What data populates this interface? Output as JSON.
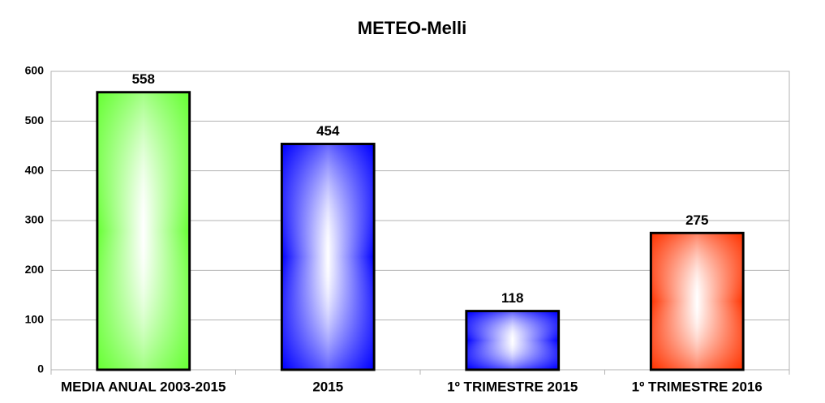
{
  "chart_data": {
    "type": "bar",
    "title": "METEO-Melli",
    "categories": [
      "MEDIA ANUAL 2003-2015",
      "2015",
      "1º TRIMESTRE 2015",
      "1º TRIMESTRE 2016"
    ],
    "values": [
      558,
      454,
      118,
      275
    ],
    "colors": [
      "#66ff33",
      "#0000ff",
      "#0000ff",
      "#ff3300"
    ],
    "ylim": [
      0,
      600
    ],
    "yticks": [
      0,
      100,
      200,
      300,
      400,
      500,
      600
    ],
    "grid": true
  }
}
